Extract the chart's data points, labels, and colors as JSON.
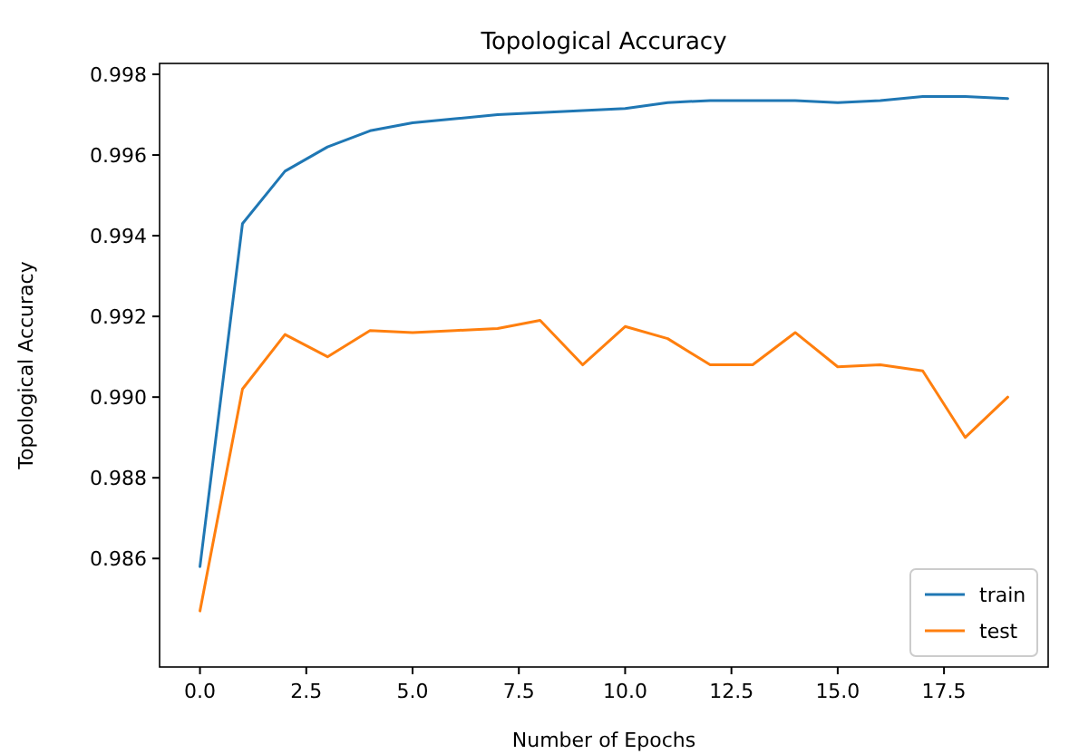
{
  "chart_data": {
    "type": "line",
    "title": "Topological Accuracy",
    "xlabel": "Number of Epochs",
    "ylabel": "Topological Accuracy",
    "x": [
      0,
      1,
      2,
      3,
      4,
      5,
      6,
      7,
      8,
      9,
      10,
      11,
      12,
      13,
      14,
      15,
      16,
      17,
      18,
      19
    ],
    "series": [
      {
        "name": "train",
        "color": "#1f77b4",
        "values": [
          0.9858,
          0.9943,
          0.9956,
          0.9962,
          0.9966,
          0.9968,
          0.9969,
          0.997,
          0.99705,
          0.9971,
          0.99715,
          0.9973,
          0.99735,
          0.99735,
          0.99735,
          0.9973,
          0.99735,
          0.99745,
          0.99745,
          0.9974
        ]
      },
      {
        "name": "test",
        "color": "#ff7f0e",
        "values": [
          0.9847,
          0.9902,
          0.99155,
          0.991,
          0.99165,
          0.9916,
          0.99165,
          0.9917,
          0.9919,
          0.9908,
          0.99175,
          0.99145,
          0.9908,
          0.9908,
          0.9916,
          0.99075,
          0.9908,
          0.99065,
          0.989,
          0.99
        ]
      }
    ],
    "xlim": [
      -0.95,
      19.95
    ],
    "ylim": [
      0.98331,
      0.99827
    ],
    "xticks": [
      {
        "value": 0,
        "label": "0.0"
      },
      {
        "value": 2.5,
        "label": "2.5"
      },
      {
        "value": 5,
        "label": "5.0"
      },
      {
        "value": 7.5,
        "label": "7.5"
      },
      {
        "value": 10,
        "label": "10.0"
      },
      {
        "value": 12.5,
        "label": "12.5"
      },
      {
        "value": 15,
        "label": "15.0"
      },
      {
        "value": 17.5,
        "label": "17.5"
      }
    ],
    "yticks": [
      0.986,
      0.988,
      {
        "value": 0.99,
        "label": "0.990"
      },
      0.992,
      0.994,
      0.996,
      0.998
    ],
    "legend": "bottom right",
    "grid": false,
    "marker": "none",
    "line_style": "solid"
  }
}
